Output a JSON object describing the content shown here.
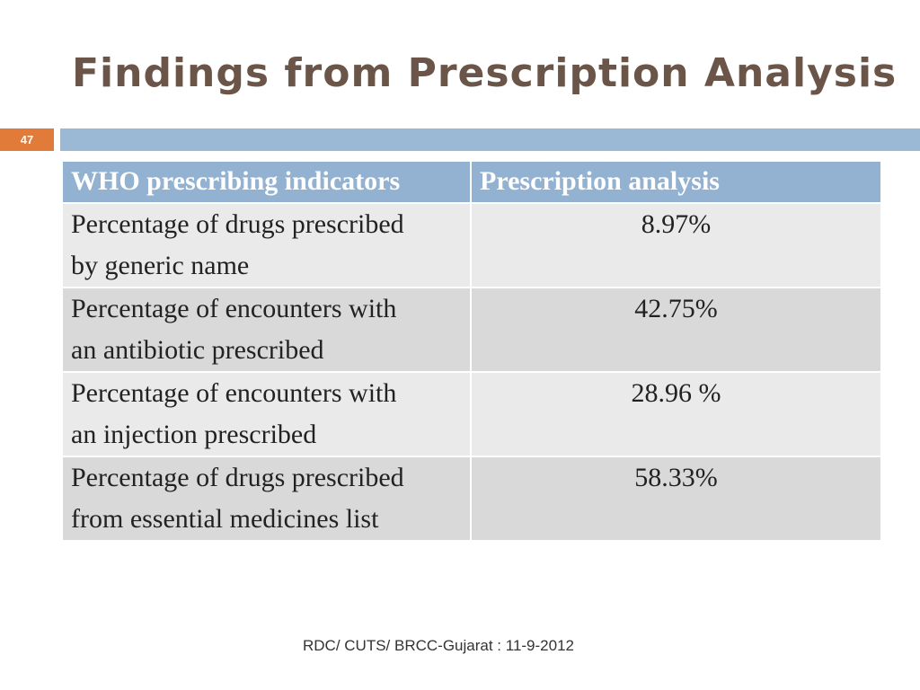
{
  "slide": {
    "title": "Findings from Prescription Analysis",
    "number": "47",
    "footer": "RDC/ CUTS/ BRCC-Gujarat : 11-9-2012"
  },
  "table": {
    "headers": [
      "WHO prescribing indicators",
      "Prescription analysis"
    ],
    "rows": [
      {
        "indicator_line1": "Percentage of drugs prescribed",
        "indicator_line2": "by generic name",
        "value": "8.97%"
      },
      {
        "indicator_line1": "Percentage of encounters with",
        "indicator_line2": "an antibiotic prescribed",
        "value": "42.75%"
      },
      {
        "indicator_line1": "Percentage of encounters with",
        "indicator_line2": "an injection prescribed",
        "value": "28.96 %"
      },
      {
        "indicator_line1": "Percentage of drugs prescribed",
        "indicator_line2": "from essential medicines list",
        "value": "58.33%"
      }
    ]
  },
  "colors": {
    "title": "#6a5548",
    "accent_orange": "#e07b39",
    "accent_blue": "#9bb8d4",
    "header_fill": "#93b2d2"
  }
}
